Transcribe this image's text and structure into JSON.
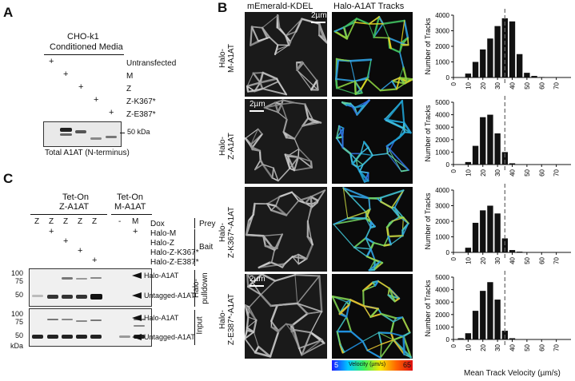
{
  "panel_a": {
    "letter": "A",
    "header_line1": "CHO-k1",
    "header_line2": "Conditioned Media",
    "plus": "+",
    "conditions": [
      "Untransfected",
      "M",
      "Z",
      "Z-K367*",
      "Z-E387*"
    ],
    "kda_label": "50 kDa",
    "blot_caption": "Total A1AT (N-terminus)"
  },
  "panel_b": {
    "letter": "B",
    "col1": "mEmerald-KDEL",
    "col2": "Halo-A1AT Tracks",
    "scale_label": "2µm",
    "rows": [
      {
        "line1": "Halo-",
        "line2": "M-A1AT"
      },
      {
        "line1": "Halo-",
        "line2": "Z-A1AT"
      },
      {
        "line1": "Halo-",
        "line2": "Z-K367*-A1AT"
      },
      {
        "line1": "Halo-",
        "line2": "Z-E387*-A1AT"
      }
    ],
    "colorbar": {
      "min": "5",
      "label": "Velocity (µm/s)",
      "max": "65"
    }
  },
  "panel_c": {
    "letter": "C",
    "group1_line1": "Tet-On",
    "group1_line2": "Z-A1AT",
    "group2_line1": "Tet-On",
    "group2_line2": "M-A1AT",
    "dox_lanes": [
      "Z",
      "Z",
      "Z",
      "Z",
      "Z",
      "-",
      "M"
    ],
    "row_labels": [
      "Dox",
      "Halo-M",
      "Halo-Z",
      "Halo-Z-K367*",
      "Halo-Z-E387*"
    ],
    "plus": "+",
    "bracket_prey": "Prey",
    "bracket_bait": "Bait",
    "pulldown_label_line1": "Halo-",
    "pulldown_label_line2": "pulldown",
    "input_label": "Input",
    "band_halo": "Halo-A1AT",
    "band_untagged": "Untagged-A1AT",
    "mw_top": [
      "100",
      "75",
      "50"
    ],
    "mw_bottom": [
      "100",
      "75",
      "50"
    ],
    "kda": "kDa"
  },
  "chart_data": [
    {
      "type": "bar",
      "title": "",
      "xlabel": "",
      "ylabel": "Number of Tracks",
      "categories": [
        "0",
        "5",
        "10",
        "15",
        "20",
        "25",
        "30",
        "35",
        "40",
        "45",
        "50",
        "55",
        "60",
        "65",
        "70",
        "75",
        "80"
      ],
      "values": [
        0,
        10,
        250,
        1000,
        1800,
        2500,
        3300,
        3800,
        3600,
        1500,
        300,
        100,
        30,
        10,
        0,
        0,
        0
      ],
      "ylim": [
        0,
        4000
      ],
      "yticks": [
        "0",
        "1000",
        "2000",
        "3000",
        "4000"
      ],
      "xticks": [
        "0",
        "10",
        "20",
        "30",
        "40",
        "50",
        "60",
        "70"
      ],
      "dashed_at": 35
    },
    {
      "type": "bar",
      "title": "",
      "xlabel": "",
      "ylabel": "Number of Tracks",
      "categories": [
        "0",
        "5",
        "10",
        "15",
        "20",
        "25",
        "30",
        "35",
        "40",
        "45",
        "50",
        "55",
        "60",
        "65",
        "70",
        "75",
        "80"
      ],
      "values": [
        0,
        0,
        200,
        1500,
        3800,
        4000,
        2500,
        1000,
        100,
        20,
        0,
        0,
        0,
        0,
        0,
        0,
        0
      ],
      "ylim": [
        0,
        5000
      ],
      "yticks": [
        "0",
        "1000",
        "2000",
        "3000",
        "4000",
        "5000"
      ],
      "xticks": [
        "0",
        "10",
        "20",
        "30",
        "40",
        "50",
        "60",
        "70"
      ],
      "dashed_at": 35
    },
    {
      "type": "bar",
      "title": "",
      "xlabel": "",
      "ylabel": "Number of Tracks",
      "categories": [
        "0",
        "5",
        "10",
        "15",
        "20",
        "25",
        "30",
        "35",
        "40",
        "45",
        "50",
        "55",
        "60",
        "65",
        "70",
        "75",
        "80"
      ],
      "values": [
        0,
        0,
        300,
        1900,
        2700,
        3000,
        2500,
        900,
        150,
        50,
        0,
        0,
        0,
        0,
        0,
        0,
        0
      ],
      "ylim": [
        0,
        4000
      ],
      "yticks": [
        "0",
        "1000",
        "2000",
        "3000",
        "4000"
      ],
      "xticks": [
        "0",
        "10",
        "20",
        "30",
        "40",
        "50",
        "60",
        "70"
      ],
      "dashed_at": 35
    },
    {
      "type": "bar",
      "title": "",
      "xlabel": "Mean Track Velocity (µm/s)",
      "ylabel": "Number of Tracks",
      "categories": [
        "0",
        "5",
        "10",
        "15",
        "20",
        "25",
        "30",
        "35",
        "40",
        "45",
        "50",
        "55",
        "60",
        "65",
        "70",
        "75",
        "80"
      ],
      "values": [
        0,
        100,
        500,
        2300,
        3900,
        4600,
        3200,
        700,
        100,
        20,
        0,
        0,
        0,
        0,
        0,
        0,
        0
      ],
      "ylim": [
        0,
        5000
      ],
      "yticks": [
        "0",
        "1000",
        "2000",
        "3000",
        "4000",
        "5000"
      ],
      "xticks": [
        "0",
        "10",
        "20",
        "30",
        "40",
        "50",
        "60",
        "70"
      ],
      "dashed_at": 35
    }
  ]
}
